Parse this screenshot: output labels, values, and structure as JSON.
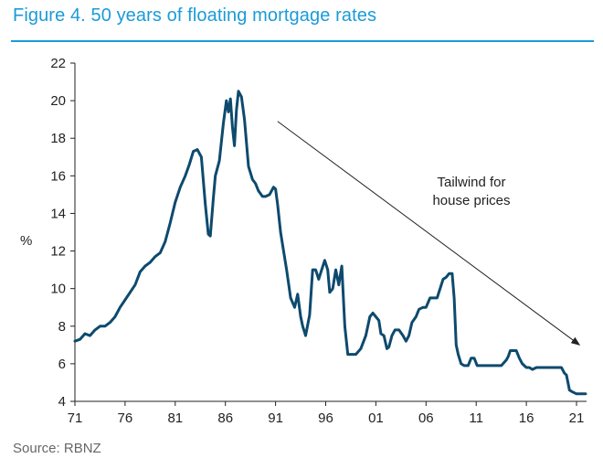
{
  "header": {
    "title": "Figure 4. 50 years of floating mortgage rates"
  },
  "footer": {
    "source": "Source: RBNZ"
  },
  "colors": {
    "title": "#1a9bd7",
    "line": "#0d4a6e",
    "axis": "#222222"
  },
  "chart_data": {
    "type": "line",
    "title": "Figure 4. 50 years of floating mortgage rates",
    "xlabel": "",
    "ylabel": "%",
    "xlim": [
      1971,
      2022
    ],
    "ylim": [
      4,
      22
    ],
    "x_ticks": [
      1971,
      1976,
      1981,
      1986,
      1991,
      1996,
      2001,
      2006,
      2011,
      2016,
      2021
    ],
    "x_tick_labels": [
      "71",
      "76",
      "81",
      "86",
      "91",
      "96",
      "01",
      "06",
      "11",
      "16",
      "21"
    ],
    "y_ticks": [
      4,
      6,
      8,
      10,
      12,
      14,
      16,
      18,
      20,
      22
    ],
    "grid": false,
    "annotation": {
      "text_lines": [
        "Tailwind for",
        "house prices"
      ],
      "arrow_from": [
        1991.2,
        18.9
      ],
      "arrow_to": [
        2021.3,
        7.0
      ]
    },
    "series": [
      {
        "x": [
          1971.0,
          1971.5,
          1972.0,
          1972.5,
          1973.0,
          1973.5,
          1974.0,
          1974.5,
          1975.0,
          1975.5,
          1976.0,
          1976.5,
          1977.0,
          1977.5,
          1978.0,
          1978.5,
          1979.0,
          1979.5,
          1980.0,
          1980.5,
          1981.0,
          1981.5,
          1982.0,
          1982.4,
          1982.8,
          1983.2,
          1983.6,
          1984.0,
          1984.3,
          1984.5,
          1984.8,
          1985.0,
          1985.4,
          1985.8,
          1986.1,
          1986.3,
          1986.5,
          1986.7,
          1986.9,
          1987.1,
          1987.3,
          1987.6,
          1987.9,
          1988.3,
          1988.7,
          1989.0,
          1989.3,
          1989.7,
          1990.0,
          1990.4,
          1990.8,
          1991.0,
          1991.2,
          1991.5,
          1991.8,
          1992.1,
          1992.5,
          1992.9,
          1993.2,
          1993.5,
          1993.7,
          1994.0,
          1994.4,
          1994.7,
          1995.0,
          1995.3,
          1995.6,
          1995.9,
          1996.2,
          1996.4,
          1996.7,
          1997.0,
          1997.3,
          1997.6,
          1997.9,
          1998.2,
          1998.4,
          1998.6,
          1998.8,
          1999.0,
          1999.5,
          2000.0,
          2000.4,
          2000.7,
          2001.0,
          2001.3,
          2001.5,
          2001.8,
          2002.1,
          2002.3,
          2002.6,
          2002.9,
          2003.3,
          2003.7,
          2004.0,
          2004.3,
          2004.6,
          2005.0,
          2005.3,
          2005.7,
          2006.0,
          2006.4,
          2006.8,
          2007.1,
          2007.4,
          2007.7,
          2008.0,
          2008.3,
          2008.6,
          2008.8,
          2009.0,
          2009.2,
          2009.5,
          2009.8,
          2010.2,
          2010.5,
          2010.8,
          2011.1,
          2011.4,
          2011.7,
          2012.0,
          2012.5,
          2013.0,
          2013.5,
          2014.0,
          2014.2,
          2014.4,
          2014.7,
          2015.0,
          2015.3,
          2015.6,
          2016.0,
          2016.3,
          2016.6,
          2017.0,
          2017.3,
          2017.6,
          2018.0,
          2018.5,
          2019.0,
          2019.5,
          2019.8,
          2020.0,
          2020.3,
          2020.6,
          2021.0,
          2021.5,
          2021.9
        ],
        "values": [
          7.2,
          7.3,
          7.6,
          7.5,
          7.8,
          8.0,
          8.0,
          8.2,
          8.5,
          9.0,
          9.4,
          9.8,
          10.2,
          10.9,
          11.2,
          11.4,
          11.7,
          11.9,
          12.5,
          13.5,
          14.6,
          15.4,
          16.0,
          16.6,
          17.3,
          17.4,
          17.0,
          14.5,
          12.9,
          12.8,
          14.8,
          16.0,
          16.8,
          18.8,
          20.0,
          19.4,
          20.1,
          18.6,
          17.6,
          19.5,
          20.5,
          20.2,
          19.0,
          16.5,
          15.8,
          15.6,
          15.2,
          14.9,
          14.9,
          15.0,
          15.4,
          15.3,
          14.5,
          13.0,
          12.0,
          11.0,
          9.5,
          9.0,
          9.7,
          8.5,
          8.0,
          7.5,
          8.6,
          11.0,
          11.0,
          10.5,
          11.0,
          11.5,
          11.0,
          9.8,
          10.0,
          11.0,
          10.2,
          11.2,
          8.0,
          6.5,
          6.5,
          6.5,
          6.5,
          6.5,
          6.8,
          7.5,
          8.5,
          8.7,
          8.5,
          8.3,
          7.6,
          7.5,
          6.8,
          6.9,
          7.5,
          7.8,
          7.8,
          7.5,
          7.2,
          7.5,
          8.2,
          8.5,
          8.9,
          9.0,
          9.0,
          9.5,
          9.5,
          9.5,
          10.0,
          10.5,
          10.6,
          10.8,
          10.8,
          9.5,
          7.0,
          6.5,
          6.0,
          5.9,
          5.9,
          6.3,
          6.3,
          5.9,
          5.9,
          5.9,
          5.9,
          5.9,
          5.9,
          5.9,
          6.2,
          6.4,
          6.7,
          6.7,
          6.7,
          6.3,
          6.0,
          5.8,
          5.8,
          5.7,
          5.8,
          5.8,
          5.8,
          5.8,
          5.8,
          5.8,
          5.8,
          5.5,
          5.4,
          4.6,
          4.5,
          4.4,
          4.4,
          4.4
        ]
      }
    ]
  }
}
